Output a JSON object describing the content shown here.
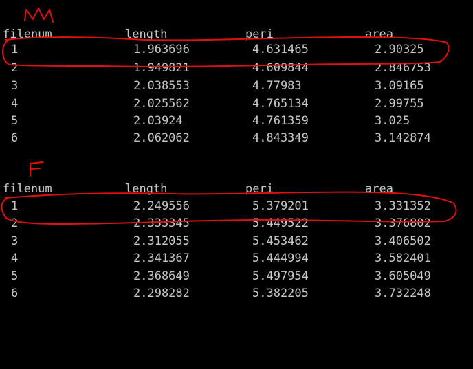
{
  "console": {
    "sections": [
      {
        "header": [
          "filenum",
          "length",
          "peri",
          "area"
        ],
        "rows": [
          [
            "1",
            "1.963696",
            "4.631465",
            "2.90325"
          ],
          [
            "2",
            "1.949821",
            "4.609844",
            "2.846753"
          ],
          [
            "3",
            "2.038553",
            "4.77983",
            "3.09165"
          ],
          [
            "4",
            "2.025562",
            "4.765134",
            "2.99755"
          ],
          [
            "5",
            "2.03924",
            "4.761359",
            "3.025"
          ],
          [
            "6",
            "2.062062",
            "4.843349",
            "3.142874"
          ]
        ]
      },
      {
        "header": [
          "filenum",
          "length",
          "peri",
          "area"
        ],
        "rows": [
          [
            "1",
            "2.249556",
            "5.379201",
            "3.331352"
          ],
          [
            "2",
            "2.333345",
            "5.449522",
            "3.376802"
          ],
          [
            "3",
            "2.312055",
            "5.453462",
            "3.406502"
          ],
          [
            "4",
            "2.341367",
            "5.444994",
            "3.582401"
          ],
          [
            "5",
            "2.368649",
            "5.497954",
            "3.605049"
          ],
          [
            "6",
            "2.298282",
            "5.382205",
            "3.732248"
          ]
        ]
      }
    ],
    "colors": {
      "background": "#000000",
      "text": "#c8c8c8",
      "annotation": "#e01010"
    }
  }
}
